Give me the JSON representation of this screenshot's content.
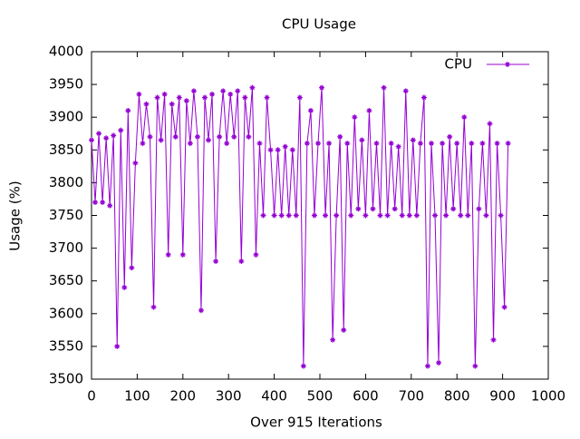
{
  "chart_data": {
    "type": "line",
    "title": "CPU Usage",
    "x_label": "Over 915 Iterations",
    "y_label": "Usage (%)",
    "xlim": [
      0,
      1000
    ],
    "xticks": [
      0,
      100,
      200,
      300,
      400,
      500,
      600,
      700,
      800,
      900,
      1000
    ],
    "ylim": [
      3500,
      4000
    ],
    "yticks": [
      3500,
      3550,
      3600,
      3650,
      3700,
      3750,
      3800,
      3850,
      3900,
      3950,
      4000
    ],
    "legend": "top-right",
    "series": [
      {
        "name": "CPU",
        "color": "#9400d3",
        "x": [
          0,
          8,
          16,
          24,
          32,
          40,
          48,
          56,
          64,
          72,
          80,
          88,
          96,
          104,
          112,
          120,
          128,
          136,
          144,
          152,
          160,
          168,
          176,
          184,
          192,
          200,
          208,
          216,
          224,
          232,
          240,
          248,
          256,
          264,
          272,
          280,
          288,
          296,
          304,
          312,
          320,
          328,
          336,
          344,
          352,
          360,
          368,
          376,
          384,
          392,
          400,
          408,
          416,
          424,
          432,
          440,
          448,
          456,
          464,
          472,
          480,
          488,
          496,
          504,
          512,
          520,
          528,
          536,
          544,
          552,
          560,
          568,
          576,
          584,
          592,
          600,
          608,
          616,
          624,
          632,
          640,
          648,
          656,
          664,
          672,
          680,
          688,
          696,
          704,
          712,
          720,
          728,
          736,
          744,
          752,
          760,
          768,
          776,
          784,
          792,
          800,
          808,
          816,
          824,
          832,
          840,
          848,
          856,
          864,
          872,
          880,
          888,
          896,
          904,
          912
        ],
        "values": [
          3865,
          3770,
          3875,
          3770,
          3868,
          3765,
          3872,
          3550,
          3880,
          3640,
          3910,
          3670,
          3830,
          3935,
          3860,
          3920,
          3870,
          3610,
          3930,
          3865,
          3935,
          3690,
          3920,
          3870,
          3930,
          3690,
          3925,
          3860,
          3940,
          3870,
          3605,
          3930,
          3865,
          3935,
          3680,
          3870,
          3940,
          3860,
          3935,
          3870,
          3940,
          3680,
          3930,
          3870,
          3945,
          3690,
          3860,
          3750,
          3930,
          3850,
          3750,
          3850,
          3750,
          3855,
          3750,
          3850,
          3750,
          3930,
          3520,
          3860,
          3910,
          3750,
          3860,
          3945,
          3750,
          3860,
          3560,
          3750,
          3870,
          3575,
          3860,
          3750,
          3900,
          3760,
          3865,
          3750,
          3910,
          3760,
          3860,
          3750,
          3945,
          3750,
          3860,
          3760,
          3855,
          3750,
          3940,
          3750,
          3865,
          3750,
          3860,
          3930,
          3520,
          3860,
          3750,
          3525,
          3860,
          3750,
          3870,
          3760,
          3860,
          3750,
          3900,
          3750,
          3860,
          3520,
          3760,
          3860,
          3750,
          3890,
          3560,
          3860,
          3750,
          3610,
          3860
        ]
      }
    ]
  }
}
